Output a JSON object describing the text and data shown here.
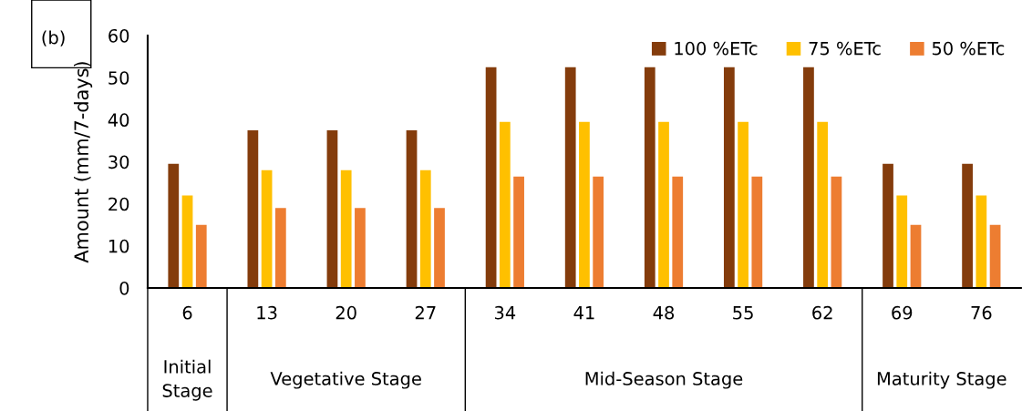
{
  "chart_data": {
    "type": "bar",
    "ylabel": "Amount (mm/7-days)",
    "categories": [
      "6",
      "13",
      "20",
      "27",
      "34",
      "41",
      "48",
      "55",
      "62",
      "69",
      "76"
    ],
    "series": [
      {
        "name": "100 %ETc",
        "color": "#843c0c",
        "values": [
          29.5,
          37.5,
          37.5,
          37.5,
          52.5,
          52.5,
          52.5,
          52.5,
          52.5,
          29.5,
          29.5
        ]
      },
      {
        "name": "75 %ETc",
        "color": "#ffc000",
        "values": [
          22,
          28,
          28,
          28,
          39.5,
          39.5,
          39.5,
          39.5,
          39.5,
          22,
          22
        ]
      },
      {
        "name": "50 %ETc",
        "color": "#ed7d31",
        "values": [
          15,
          19,
          19,
          19,
          26.5,
          26.5,
          26.5,
          26.5,
          26.5,
          15,
          15
        ]
      }
    ],
    "ylim": [
      0,
      60
    ],
    "yticks": [
      0,
      10,
      20,
      30,
      40,
      50,
      60
    ],
    "grid": false,
    "legend": "top right",
    "annotations": [
      "(b)",
      "Initial\nStage",
      "Vegetative Stage",
      "Mid-Season Stage",
      "Maturity Stage"
    ]
  }
}
